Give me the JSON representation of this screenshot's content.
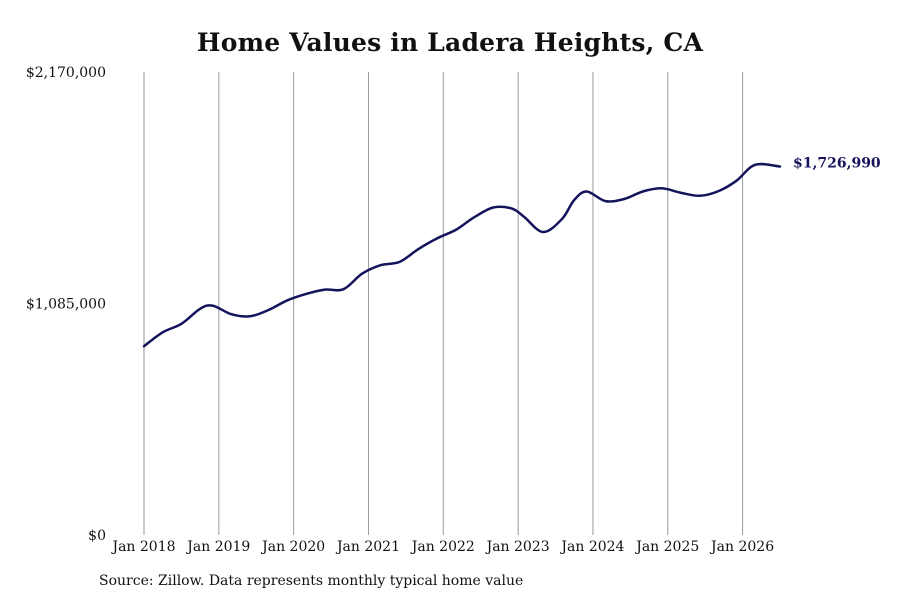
{
  "chart_data": {
    "type": "line",
    "title": "Home Values in Ladera Heights, CA",
    "source": "Source: Zillow. Data represents monthly typical home value",
    "xlabel": "",
    "ylabel": "",
    "ylim": [
      0,
      2170000
    ],
    "y_ticks": [
      {
        "value": 0,
        "label": "$0"
      },
      {
        "value": 1085000,
        "label": "$1,085,000"
      },
      {
        "value": 2170000,
        "label": "$2,170,000"
      }
    ],
    "x_ticks": [
      {
        "value": "2018-01",
        "label": "Jan 2018"
      },
      {
        "value": "2019-01",
        "label": "Jan 2019"
      },
      {
        "value": "2020-01",
        "label": "Jan 2020"
      },
      {
        "value": "2021-01",
        "label": "Jan 2021"
      },
      {
        "value": "2022-01",
        "label": "Jan 2022"
      },
      {
        "value": "2023-01",
        "label": "Jan 2023"
      },
      {
        "value": "2024-01",
        "label": "Jan 2024"
      },
      {
        "value": "2025-01",
        "label": "Jan 2025"
      },
      {
        "value": "2026-01",
        "label": "Jan 2026"
      }
    ],
    "xlim": [
      "2018-01",
      "2026-07"
    ],
    "grid": "vertical",
    "line_color": "#14145c",
    "end_label": "$1,726,990",
    "series": [
      {
        "points": [
          [
            "2018-01",
            885000
          ],
          [
            "2018-04",
            950000
          ],
          [
            "2018-07",
            990000
          ],
          [
            "2018-10",
            1060000
          ],
          [
            "2018-12",
            1075000
          ],
          [
            "2019-03",
            1035000
          ],
          [
            "2019-06",
            1025000
          ],
          [
            "2019-09",
            1055000
          ],
          [
            "2019-12",
            1100000
          ],
          [
            "2020-03",
            1130000
          ],
          [
            "2020-06",
            1150000
          ],
          [
            "2020-09",
            1152000
          ],
          [
            "2020-12",
            1225000
          ],
          [
            "2021-03",
            1265000
          ],
          [
            "2021-06",
            1280000
          ],
          [
            "2021-09",
            1340000
          ],
          [
            "2021-12",
            1390000
          ],
          [
            "2022-03",
            1430000
          ],
          [
            "2022-06",
            1490000
          ],
          [
            "2022-09",
            1535000
          ],
          [
            "2022-12",
            1530000
          ],
          [
            "2023-02",
            1490000
          ],
          [
            "2023-05",
            1420000
          ],
          [
            "2023-08",
            1480000
          ],
          [
            "2023-10",
            1570000
          ],
          [
            "2023-12",
            1610000
          ],
          [
            "2024-03",
            1565000
          ],
          [
            "2024-06",
            1575000
          ],
          [
            "2024-09",
            1610000
          ],
          [
            "2024-12",
            1625000
          ],
          [
            "2025-03",
            1605000
          ],
          [
            "2025-06",
            1590000
          ],
          [
            "2025-09",
            1610000
          ],
          [
            "2025-12",
            1660000
          ],
          [
            "2026-03",
            1735000
          ],
          [
            "2026-07",
            1726990
          ]
        ]
      }
    ]
  }
}
